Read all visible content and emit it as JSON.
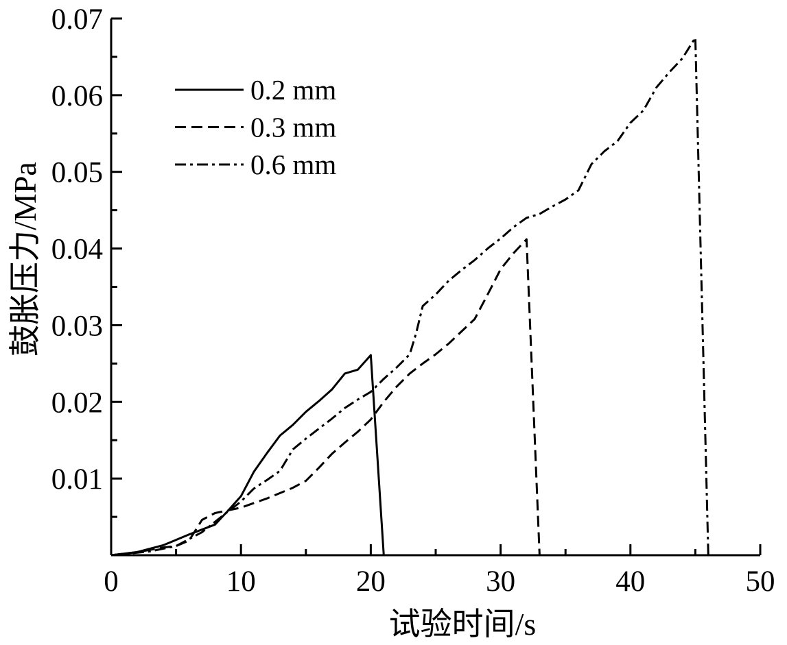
{
  "chart_data": {
    "type": "line",
    "xlabel": "试验时间/s",
    "ylabel": "鼓胀压力/MPa",
    "xlim": [
      0,
      50
    ],
    "ylim": [
      0,
      0.07
    ],
    "x_ticks": [
      {
        "value": 0,
        "label": "0"
      },
      {
        "value": 10,
        "label": "10"
      },
      {
        "value": 20,
        "label": "20"
      },
      {
        "value": 30,
        "label": "30"
      },
      {
        "value": 40,
        "label": "40"
      },
      {
        "value": 50,
        "label": "50"
      }
    ],
    "y_ticks": [
      {
        "value": 0.01,
        "label": "0.01"
      },
      {
        "value": 0.02,
        "label": "0.02"
      },
      {
        "value": 0.03,
        "label": "0.03"
      },
      {
        "value": 0.04,
        "label": "0.04"
      },
      {
        "value": 0.05,
        "label": "0.05"
      },
      {
        "value": 0.06,
        "label": "0.06"
      },
      {
        "value": 0.07,
        "label": "0.07"
      }
    ],
    "x_minor_step": 5,
    "y_minor_step": 0.005,
    "grid": false,
    "legend_position": "top-left",
    "series": [
      {
        "name": "0.2 mm",
        "line_style": "solid",
        "color": "#000000",
        "x": [
          0,
          2,
          4,
          6,
          8,
          9,
          10,
          11,
          12,
          13,
          14,
          15,
          16,
          17,
          18,
          19,
          20,
          21
        ],
        "y": [
          0,
          0.0004,
          0.0013,
          0.0027,
          0.004,
          0.0058,
          0.0077,
          0.0109,
          0.0133,
          0.0156,
          0.017,
          0.0187,
          0.0201,
          0.0216,
          0.0237,
          0.0242,
          0.0261,
          0
        ]
      },
      {
        "name": "0.3 mm",
        "line_style": "dashed",
        "color": "#000000",
        "x": [
          0,
          2,
          4,
          5,
          6,
          7,
          8,
          10,
          12,
          14,
          15,
          16,
          17,
          18,
          19,
          20,
          21,
          22,
          23,
          24,
          25,
          26,
          27,
          28,
          29,
          30,
          31,
          32,
          33
        ],
        "y": [
          0,
          0.0004,
          0.001,
          0.0012,
          0.0019,
          0.0046,
          0.0055,
          0.0062,
          0.0074,
          0.0088,
          0.0097,
          0.0114,
          0.0132,
          0.0147,
          0.0161,
          0.0177,
          0.02,
          0.022,
          0.0237,
          0.025,
          0.0262,
          0.0276,
          0.0292,
          0.0308,
          0.034,
          0.0373,
          0.0394,
          0.0412,
          0
        ]
      },
      {
        "name": "0.6 mm",
        "line_style": "dash-dot",
        "color": "#000000",
        "x": [
          0,
          3,
          5,
          7,
          9,
          10,
          11,
          12,
          13,
          14,
          15,
          16,
          17,
          18,
          19,
          20,
          21,
          22,
          23,
          23.5,
          24,
          25,
          26,
          27,
          28,
          29,
          30,
          31,
          32,
          33,
          34,
          35,
          36,
          37,
          38,
          39,
          40,
          41,
          42,
          43,
          44,
          45,
          46
        ],
        "y": [
          0,
          0.0005,
          0.0012,
          0.003,
          0.0057,
          0.007,
          0.0087,
          0.0098,
          0.011,
          0.0138,
          0.0152,
          0.0165,
          0.0178,
          0.0192,
          0.0203,
          0.0213,
          0.023,
          0.0245,
          0.0262,
          0.029,
          0.0325,
          0.034,
          0.0358,
          0.0372,
          0.0385,
          0.04,
          0.0413,
          0.0428,
          0.044,
          0.0445,
          0.0455,
          0.0464,
          0.0476,
          0.051,
          0.0527,
          0.054,
          0.0564,
          0.058,
          0.061,
          0.063,
          0.0648,
          0.0675,
          0
        ]
      }
    ]
  }
}
